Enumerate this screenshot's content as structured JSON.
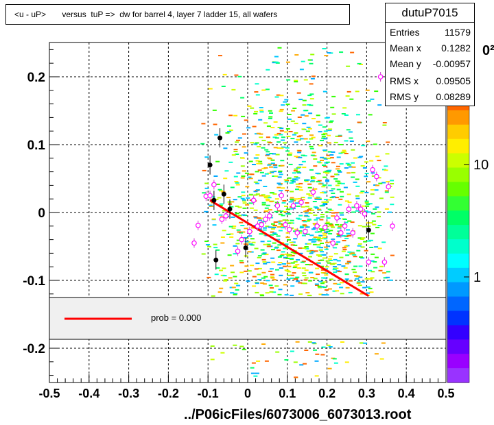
{
  "chart_data": {
    "type": "scatter",
    "title": "<u - uP>       versus  tuP =>  dw for barrel 4, layer 7 ladder 15, all wafers",
    "xlabel": "../P06icFiles/6073006_6073013.root",
    "ylabel": "",
    "xlim": [
      -0.5,
      0.5
    ],
    "ylim": [
      -0.25,
      0.25
    ],
    "grid": true,
    "x_ticks": [
      "-0.5",
      "-0.4",
      "-0.3",
      "-0.2",
      "-0.1",
      "0",
      "0.1",
      "0.2",
      "0.3",
      "0.4",
      "0.5"
    ],
    "y_ticks": [
      "0.2",
      "0.1",
      "0",
      "-0.1",
      "-0.2"
    ],
    "colorbar": {
      "labels": [
        "1",
        "10"
      ],
      "top_label_partial": "0²",
      "scale": "log"
    },
    "stats": {
      "name": "dutuP7015",
      "rows": [
        {
          "label": "Entries",
          "value": "11579"
        },
        {
          "label": "Mean x",
          "value": "0.1282"
        },
        {
          "label": "Mean y",
          "value": "-0.00957"
        },
        {
          "label": "RMS x",
          "value": "0.09505"
        },
        {
          "label": "RMS y",
          "value": "0.08289"
        }
      ]
    },
    "legend": {
      "entries": [
        {
          "label": "prob = 0.000",
          "color": "#ff0000"
        }
      ],
      "placement": "lower-center"
    },
    "fit_line": {
      "x": [
        -0.095,
        0.305
      ],
      "y": [
        0.018,
        -0.123
      ],
      "color": "#ff0000"
    },
    "profile_black": [
      {
        "x": -0.095,
        "y": 0.07
      },
      {
        "x": -0.085,
        "y": 0.018
      },
      {
        "x": -0.07,
        "y": 0.11
      },
      {
        "x": -0.06,
        "y": 0.027
      },
      {
        "x": -0.045,
        "y": 0.005
      },
      {
        "x": -0.08,
        "y": -0.07
      },
      {
        "x": -0.005,
        "y": -0.052
      },
      {
        "x": 0.305,
        "y": -0.026
      }
    ],
    "profile_magenta": [
      {
        "x": -0.135,
        "y": -0.045
      },
      {
        "x": -0.125,
        "y": -0.019
      },
      {
        "x": -0.105,
        "y": 0.024
      },
      {
        "x": -0.095,
        "y": 0.025
      },
      {
        "x": -0.085,
        "y": 0.041
      },
      {
        "x": -0.065,
        "y": -0.01
      },
      {
        "x": -0.055,
        "y": -0.005
      },
      {
        "x": -0.025,
        "y": -0.057
      },
      {
        "x": -0.015,
        "y": -0.04
      },
      {
        "x": 0.005,
        "y": -0.028
      },
      {
        "x": 0.015,
        "y": 0.018
      },
      {
        "x": 0.025,
        "y": -0.02
      },
      {
        "x": 0.035,
        "y": -0.018
      },
      {
        "x": 0.045,
        "y": -0.01
      },
      {
        "x": 0.055,
        "y": -0.005
      },
      {
        "x": 0.075,
        "y": 0.01
      },
      {
        "x": 0.085,
        "y": 0.025
      },
      {
        "x": 0.095,
        "y": -0.018
      },
      {
        "x": 0.105,
        "y": -0.025
      },
      {
        "x": 0.115,
        "y": 0.01
      },
      {
        "x": 0.125,
        "y": -0.03
      },
      {
        "x": 0.135,
        "y": 0.015
      },
      {
        "x": 0.145,
        "y": -0.028
      },
      {
        "x": 0.165,
        "y": 0.03
      },
      {
        "x": 0.175,
        "y": -0.02
      },
      {
        "x": 0.195,
        "y": -0.022
      },
      {
        "x": 0.215,
        "y": -0.045
      },
      {
        "x": 0.225,
        "y": -0.008
      },
      {
        "x": 0.235,
        "y": -0.03
      },
      {
        "x": 0.245,
        "y": -0.02
      },
      {
        "x": 0.255,
        "y": 0.005
      },
      {
        "x": 0.265,
        "y": -0.03
      },
      {
        "x": 0.275,
        "y": 0.01
      },
      {
        "x": 0.285,
        "y": 0.005
      },
      {
        "x": 0.295,
        "y": -0.002
      },
      {
        "x": 0.305,
        "y": -0.073
      },
      {
        "x": 0.315,
        "y": 0.063
      },
      {
        "x": 0.325,
        "y": 0.053
      },
      {
        "x": 0.335,
        "y": 0.2
      },
      {
        "x": 0.345,
        "y": -0.073
      },
      {
        "x": 0.355,
        "y": 0.038
      },
      {
        "x": 0.365,
        "y": -0.02
      }
    ]
  }
}
